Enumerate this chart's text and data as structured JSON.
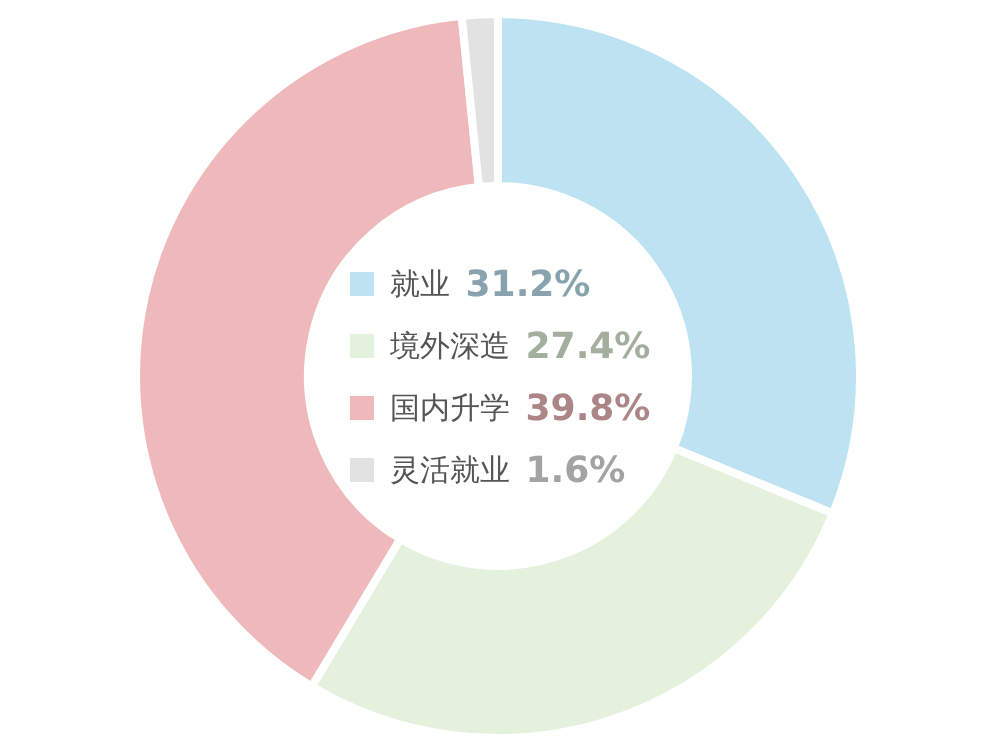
{
  "chart_data": {
    "type": "donut",
    "categories": [
      "就业",
      "境外深造",
      "国内升学",
      "灵活就业"
    ],
    "values": [
      31.2,
      27.4,
      39.8,
      1.6
    ],
    "colors": [
      "#bde3f2",
      "#e3f1dd",
      "#efb9bc",
      "#e2e2e2"
    ],
    "value_labels": [
      "31.2%",
      "27.4%",
      "39.8%",
      "1.6%"
    ],
    "legend": "center"
  }
}
